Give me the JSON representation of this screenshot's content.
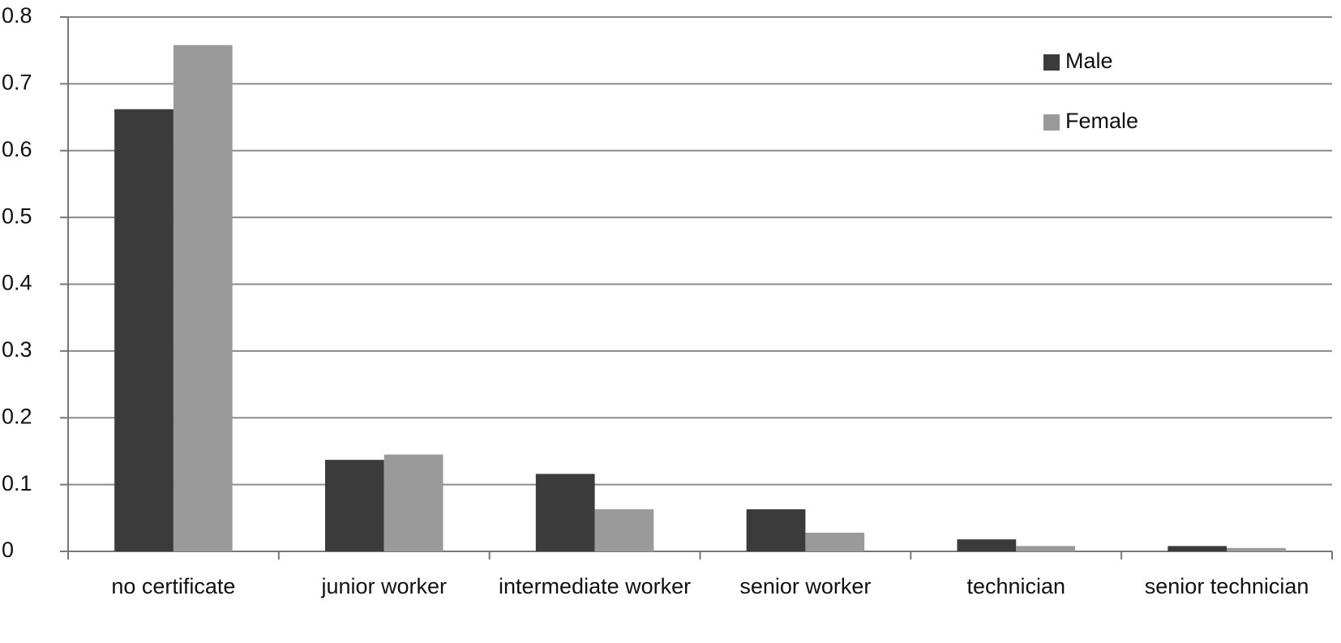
{
  "chart_data": {
    "type": "bar",
    "categories": [
      "no certificate",
      "junior worker",
      "intermediate worker",
      "senior worker",
      "technician",
      "senior technician"
    ],
    "series": [
      {
        "name": "Male",
        "color": "#3b3b3b",
        "values": [
          0.662,
          0.137,
          0.116,
          0.063,
          0.018,
          0.008
        ]
      },
      {
        "name": "Female",
        "color": "#9a9a9a",
        "values": [
          0.758,
          0.145,
          0.063,
          0.028,
          0.008,
          0.005
        ]
      }
    ],
    "ylim": [
      0,
      0.8
    ],
    "yticks": [
      0,
      0.1,
      0.2,
      0.3,
      0.4,
      0.5,
      0.6,
      0.7,
      0.8
    ],
    "grid": true,
    "legend": "top-right"
  }
}
